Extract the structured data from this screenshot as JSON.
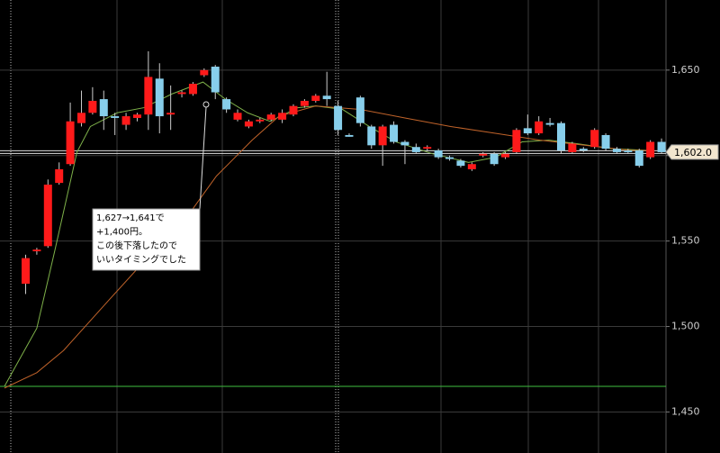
{
  "chart_data": {
    "type": "candlestick",
    "open": [
      1525,
      1544,
      1547,
      1584,
      1595,
      1619,
      1625,
      1633,
      1623,
      1618,
      1622,
      1624,
      1645,
      1624,
      1636,
      1636,
      1647,
      1652,
      1633,
      1621,
      1617,
      1620,
      1621,
      1621,
      1624,
      1629,
      1632,
      1635,
      1629,
      1612,
      1634,
      1617,
      1606,
      1618,
      1608,
      1605,
      1604,
      1603,
      1599,
      1597,
      1592,
      1600,
      1601,
      1599,
      1602,
      1616,
      1613,
      1619,
      1619,
      1602,
      1604,
      1605,
      1612,
      1604,
      1603,
      1603,
      1599,
      1608
    ],
    "close": [
      1540,
      1545,
      1583,
      1592,
      1620,
      1625,
      1632,
      1623,
      1622,
      1623,
      1624,
      1646,
      1623,
      1625,
      1637,
      1642,
      1650,
      1637,
      1627,
      1625,
      1620,
      1621,
      1624,
      1625,
      1629,
      1632,
      1635,
      1633,
      1615,
      1611,
      1619,
      1606,
      1617,
      1608,
      1606,
      1602,
      1605,
      1599,
      1598,
      1594,
      1595,
      1601,
      1595,
      1601,
      1615,
      1613,
      1620,
      1618,
      1603,
      1607,
      1603,
      1615,
      1604,
      1602,
      1602,
      1594,
      1608,
      1602
    ],
    "high": [
      1542,
      1546,
      1586,
      1596,
      1631,
      1638,
      1640,
      1638,
      1625,
      1625,
      1625,
      1661,
      1654,
      1641,
      1638,
      1643,
      1651,
      1653,
      1634,
      1627,
      1621,
      1622,
      1625,
      1627,
      1630,
      1633,
      1636,
      1649,
      1632,
      1613,
      1635,
      1618,
      1618,
      1620,
      1609,
      1607,
      1606,
      1604,
      1600,
      1598,
      1596,
      1602,
      1602,
      1602,
      1616,
      1624,
      1623,
      1622,
      1620,
      1608,
      1605,
      1616,
      1613,
      1605,
      1604,
      1604,
      1609,
      1610
    ],
    "low": [
      1519,
      1542,
      1546,
      1583,
      1594,
      1617,
      1624,
      1615,
      1612,
      1615,
      1620,
      1615,
      1613,
      1615,
      1634,
      1635,
      1646,
      1633,
      1625,
      1620,
      1616,
      1619,
      1620,
      1619,
      1623,
      1628,
      1631,
      1629,
      1612,
      1611,
      1617,
      1604,
      1594,
      1607,
      1595,
      1601,
      1603,
      1598,
      1597,
      1593,
      1591,
      1599,
      1594,
      1598,
      1601,
      1612,
      1612,
      1617,
      1601,
      1601,
      1602,
      1604,
      1603,
      1601,
      1601,
      1593,
      1598,
      1601
    ],
    "up_color": "#ff1a1a",
    "down_color": "#87ceeb",
    "lines": [
      {
        "color": "#7fb24a",
        "x": [
          -1.9,
          1.0,
          2.6,
          4.6,
          5.8,
          8.2,
          10.6,
          13.1,
          15.9,
          17.9,
          19.9,
          21.9,
          24.4,
          26.0,
          28.4,
          30.8,
          33.2,
          36.5,
          39.7,
          42.1,
          44.5,
          46.9,
          49.4,
          52.6,
          55.8
        ],
        "values": [
          1465,
          1499,
          1544,
          1602,
          1617,
          1625,
          1628,
          1636,
          1643,
          1633,
          1625,
          1620,
          1628,
          1629,
          1627,
          1617,
          1608,
          1601,
          1596,
          1599,
          1608,
          1609,
          1607,
          1604,
          1603
        ]
      },
      {
        "color": "#c0632a",
        "x": [
          -1.9,
          1.0,
          3.4,
          7.4,
          10.6,
          13.9,
          17.1,
          20.3,
          22.7,
          26.0,
          30.0,
          34.0,
          38.1,
          42.1,
          46.1,
          50.2,
          54.2,
          55.8
        ],
        "values": [
          1464,
          1473,
          1486,
          1515,
          1538,
          1559,
          1588,
          1609,
          1623,
          1629,
          1627,
          1622,
          1617,
          1613,
          1609,
          1606,
          1603,
          1603
        ]
      }
    ],
    "support_line": 1465,
    "last_price": {
      "value": 1602,
      "label": "1,602.0"
    },
    "xlim": [
      -2.3,
      57.4
    ],
    "ylim": [
      1426,
      1691
    ],
    "yticks": [
      {
        "value": 1450,
        "label": "1,450"
      },
      {
        "value": 1500,
        "label": "1,500"
      },
      {
        "value": 1550,
        "label": "1,550"
      },
      {
        "value": 1600,
        "label": "1,600"
      },
      {
        "value": 1650,
        "label": "1,650"
      }
    ],
    "annotation": {
      "lines": [
        "1,627→1,641で",
        "+1,400円。",
        "この後下落したので",
        "いいタイミングでした"
      ]
    },
    "grid": true
  }
}
